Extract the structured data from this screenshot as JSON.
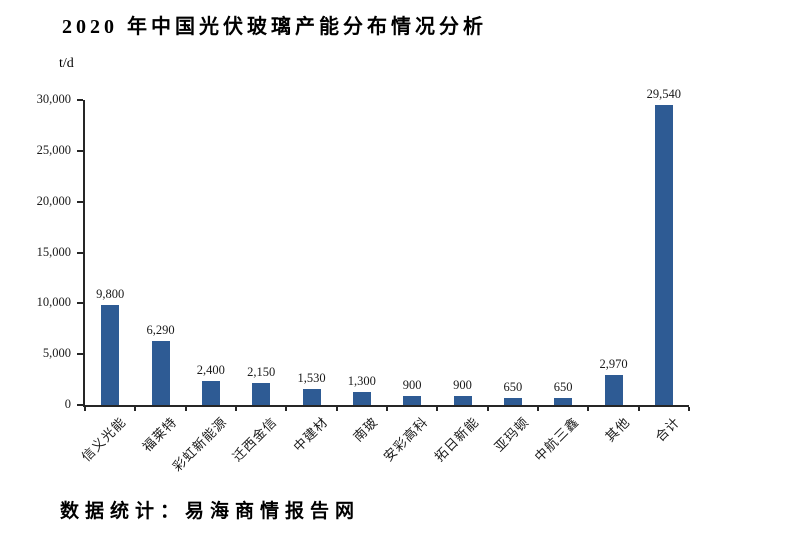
{
  "title": "2020 年中国光伏玻璃产能分布情况分析",
  "unit_label": "t/d",
  "source_note": "数据统计：易海商情报告网",
  "colors": {
    "bar": "#2E5B94",
    "axis": "#262626",
    "text": "#000000"
  },
  "chart_data": {
    "type": "bar",
    "title": "2020 年中国光伏玻璃产能分布情况分析",
    "xlabel": "",
    "ylabel": "t/d",
    "ylim": [
      0,
      30000
    ],
    "ytick_step": 5000,
    "grid": false,
    "legend": "none",
    "categories": [
      "信义光能",
      "福莱特",
      "彩虹新能源",
      "迁西金信",
      "中建材",
      "南玻",
      "安彩高科",
      "拓日新能",
      "亚玛顿",
      "中航三鑫",
      "其他",
      "合计"
    ],
    "values": [
      9800,
      6290,
      2400,
      2150,
      1530,
      1300,
      900,
      900,
      650,
      650,
      2970,
      29540
    ],
    "value_labels": [
      "9,800",
      "6,290",
      "2,400",
      "2,150",
      "1,530",
      "1,300",
      "900",
      "900",
      "650",
      "650",
      "2,970",
      "29,540"
    ],
    "ytick_values": [
      0,
      5000,
      10000,
      15000,
      20000,
      25000,
      30000
    ],
    "ytick_labels": [
      "0",
      "5,000",
      "10,000",
      "15,000",
      "20,000",
      "25,000",
      "30,000"
    ]
  }
}
